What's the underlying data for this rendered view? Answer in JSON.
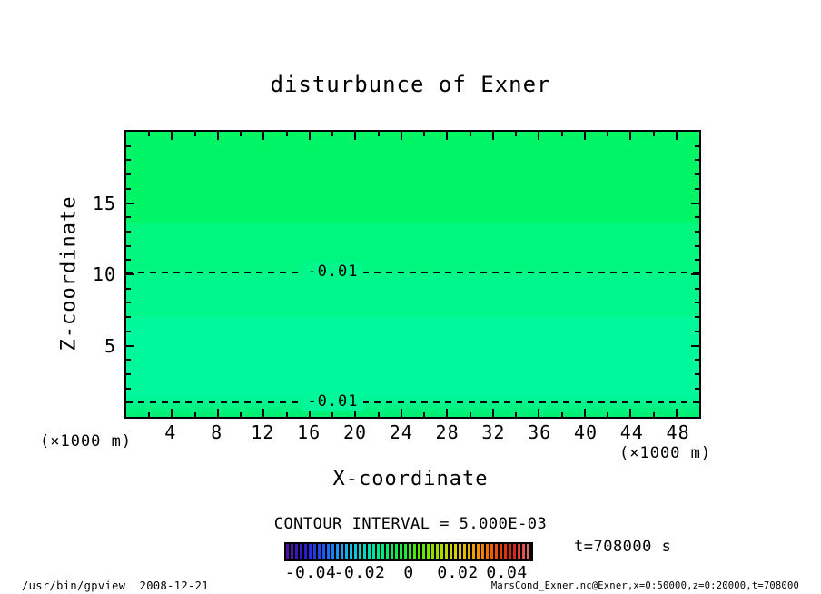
{
  "page": {
    "background": "#ffffff"
  },
  "chart_data": {
    "type": "heatmap",
    "title": "disturbunce of Exner",
    "xlabel": "X-coordinate",
    "ylabel": "Z-coordinate",
    "x_unit_label": "(×1000 m)",
    "y_unit_label": "(×1000 m)",
    "xlim": [
      0,
      50
    ],
    "ylim": [
      0,
      20
    ],
    "x_major_ticks": [
      4,
      8,
      12,
      16,
      20,
      24,
      28,
      32,
      36,
      40,
      44,
      48
    ],
    "x_minor_step": 2,
    "y_major_ticks": [
      5,
      10,
      15
    ],
    "y_minor_step": 1,
    "grid": false,
    "contour_interval_label": "CONTOUR INTERVAL = 5.000E-03",
    "contour_lines": [
      {
        "label": "-0.01",
        "value": -0.01,
        "z": 10.1,
        "style": "dashed",
        "label_bg": "#00f78b"
      },
      {
        "label": "-0.01",
        "value": -0.01,
        "z": 1.05,
        "style": "dashed",
        "label_bg": "#00f89a"
      }
    ],
    "tone_bands": [
      {
        "z_from": 13.6,
        "z_to": 20.0,
        "color": "#00f566"
      },
      {
        "z_from": 10.0,
        "z_to": 13.6,
        "color": "#00f67e"
      },
      {
        "z_from": 7.0,
        "z_to": 10.0,
        "color": "#00f78b"
      },
      {
        "z_from": 1.4,
        "z_to": 7.0,
        "color": "#00f89d"
      },
      {
        "z_from": 0.0,
        "z_to": 1.4,
        "color": "#00ef70"
      }
    ],
    "colorbar": {
      "min": -0.05,
      "max": 0.05,
      "tick_values": [
        -0.04,
        -0.02,
        0,
        0.02,
        0.04
      ],
      "tick_labels": [
        "-0.04",
        "-0.02",
        "0",
        "0.02",
        "0.04"
      ],
      "colors": [
        "#50109a",
        "#2a1ad2",
        "#1b5af0",
        "#18a8f8",
        "#00d8c8",
        "#00e88a",
        "#10ee40",
        "#52e800",
        "#9cdc00",
        "#dcd000",
        "#f0a000",
        "#ee5800",
        "#d41c10",
        "#e87878"
      ]
    },
    "time_label": "t=708000 s"
  },
  "footer": {
    "left": "/usr/bin/gpview  2008-12-21",
    "right": "MarsCond_Exner.nc@Exner,x=0:50000,z=0:20000,t=708000"
  }
}
